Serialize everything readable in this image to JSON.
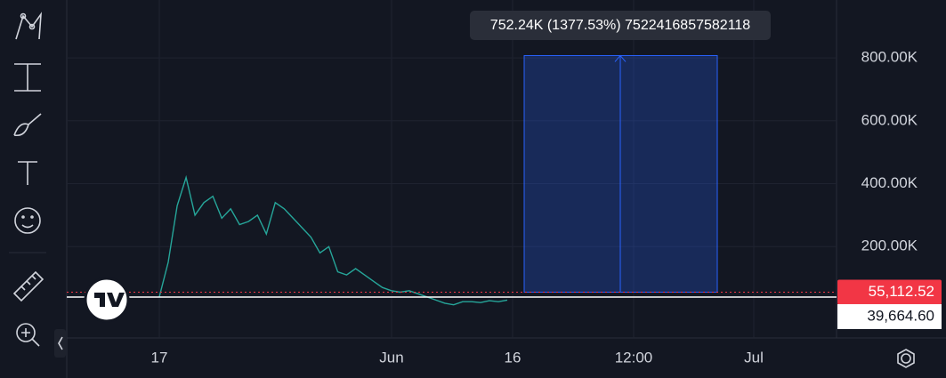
{
  "chart_data": {
    "type": "line",
    "x_labels": [
      "17",
      "Jun",
      "16",
      "12:00",
      "Jul"
    ],
    "values": [
      40000,
      150000,
      330000,
      420000,
      300000,
      340000,
      360000,
      290000,
      320000,
      270000,
      280000,
      300000,
      240000,
      340000,
      320000,
      290000,
      260000,
      230000,
      180000,
      200000,
      120000,
      110000,
      130000,
      110000,
      90000,
      70000,
      60000,
      55000,
      60000,
      50000,
      40000,
      30000,
      20000,
      15000,
      25000,
      25000,
      22000,
      28000,
      25000,
      30000
    ],
    "color": "#26a69a",
    "ylim": [
      -90500,
      984000
    ],
    "yticks": [
      {
        "value": 200000,
        "label": "200.00K"
      },
      {
        "value": 400000,
        "label": "400.00K"
      },
      {
        "value": 600000,
        "label": "600.00K"
      },
      {
        "value": 800000,
        "label": "800.00K"
      }
    ],
    "grid": true,
    "last_price": {
      "value": 55112.52,
      "label": "55,112.52"
    },
    "crosshair_price": {
      "value": 39664.6,
      "label": "39,664.60"
    },
    "measure": {
      "change": 752240,
      "text": "752.24K (1377.53%) 7522416857582118"
    }
  }
}
